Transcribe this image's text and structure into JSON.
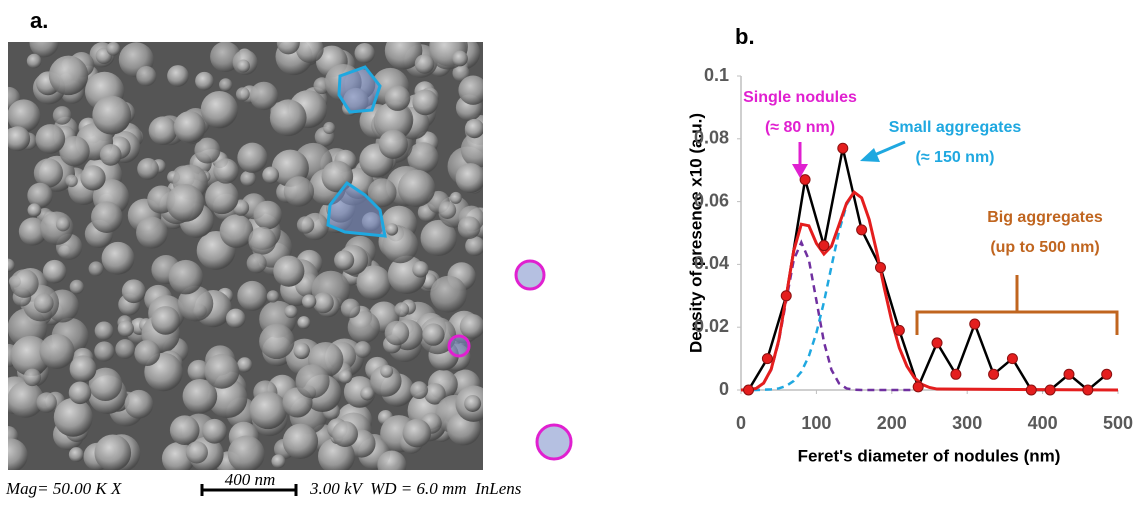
{
  "panel_a": {
    "label": "a.",
    "caption": "Mag= 50.00 K X",
    "scale_bar": "400 nm",
    "settings": "3.00 kV  WD = 6.0 mm  InLens"
  },
  "chart_data": {
    "type": "line",
    "label": "b.",
    "ylabel": "Density of presence x10 (a.u.)",
    "xlabel": "Feret's diameter of nodules (nm)",
    "xlim": [
      0,
      500
    ],
    "ylim": [
      0,
      0.1
    ],
    "xticks": [
      0,
      100,
      200,
      300,
      400,
      500
    ],
    "yticks": [
      0,
      0.02,
      0.04,
      0.06,
      0.08,
      0.1
    ],
    "series": [
      {
        "color": "#7030a0",
        "dashed": true,
        "x": [
          0,
          10,
          20,
          30,
          40,
          50,
          60,
          70,
          80,
          90,
          100,
          110,
          120,
          130,
          140,
          150,
          160,
          170,
          180,
          190,
          200,
          210,
          220,
          230,
          240
        ],
        "values": [
          0,
          0.0001,
          0.0005,
          0.0021,
          0.0064,
          0.0153,
          0.0285,
          0.0415,
          0.047,
          0.0415,
          0.0285,
          0.0153,
          0.0064,
          0.0021,
          0.0005,
          0.0001,
          0,
          0,
          0,
          0,
          0,
          0,
          0,
          0,
          0
        ]
      },
      {
        "color": "#1fa8e0",
        "dashed": true,
        "x": [
          0,
          10,
          20,
          30,
          40,
          50,
          60,
          70,
          80,
          90,
          100,
          110,
          120,
          130,
          140,
          150
        ],
        "values": [
          0,
          0,
          0,
          0.0001,
          0.0002,
          0.0005,
          0.0013,
          0.0029,
          0.0058,
          0.0108,
          0.0182,
          0.028,
          0.0394,
          0.0505,
          0.059,
          0.0629
        ]
      },
      {
        "color": "#000000",
        "marker_color": "#e41e1e",
        "x": [
          10,
          35,
          60,
          85,
          110,
          135,
          160,
          185,
          210,
          235,
          260,
          285,
          310,
          335,
          360,
          385,
          410,
          435,
          460,
          485
        ],
        "values": [
          0,
          0.01,
          0.03,
          0.067,
          0.046,
          0.077,
          0.051,
          0.039,
          0.019,
          0.001,
          0.015,
          0.005,
          0.021,
          0.005,
          0.01,
          0,
          0,
          0.005,
          0,
          0.005
        ]
      },
      {
        "color": "#e41e1e",
        "x": [
          0,
          10,
          20,
          30,
          40,
          50,
          60,
          70,
          80,
          90,
          100,
          110,
          120,
          130,
          140,
          150,
          160,
          170,
          180,
          190,
          200,
          210,
          220,
          230,
          240,
          250,
          260,
          500
        ],
        "values": [
          0,
          0.0001,
          0.0005,
          0.0022,
          0.0066,
          0.0158,
          0.0298,
          0.0444,
          0.0528,
          0.0523,
          0.0467,
          0.0433,
          0.0458,
          0.0526,
          0.0595,
          0.063,
          0.0612,
          0.0543,
          0.044,
          0.0325,
          0.0219,
          0.0134,
          0.0076,
          0.0039,
          0.0018,
          0.0008,
          0.0003,
          0
        ]
      }
    ],
    "annotations": [
      {
        "lines": [
          "Single nodules",
          "(≈ 80 nm)"
        ],
        "color": "#e020d0"
      },
      {
        "lines": [
          "Small aggregates",
          "(≈ 150 nm)"
        ],
        "color": "#1fa8e0"
      },
      {
        "lines": [
          "Big aggregates",
          "(up to 500 nm)"
        ],
        "color": "#c0651f"
      }
    ]
  }
}
